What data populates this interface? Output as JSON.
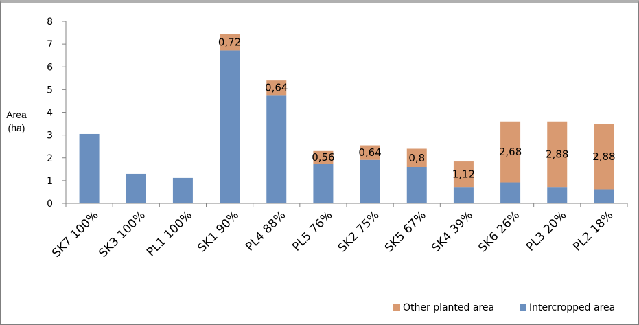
{
  "chart_data": {
    "type": "bar",
    "stacked": true,
    "categories": [
      "SK7 100%",
      "SK3 100%",
      "PL1 100%",
      "SK1 90%",
      "PL4 88%",
      "PL5 76%",
      "SK2 75%",
      "SK5 67%",
      "SK4 39%",
      "SK6 26%",
      "PL3 20%",
      "PL2 18%"
    ],
    "series": [
      {
        "name": "Intercropped area",
        "color": "#6a8fbf",
        "values": [
          3.05,
          1.3,
          1.12,
          6.72,
          4.76,
          1.74,
          1.91,
          1.6,
          0.72,
          0.92,
          0.72,
          0.62
        ]
      },
      {
        "name": "Other planted area",
        "color": "#d99a71",
        "values": [
          0,
          0,
          0,
          0.72,
          0.64,
          0.56,
          0.64,
          0.8,
          1.12,
          2.68,
          2.88,
          2.88
        ]
      }
    ],
    "data_labels": [
      "",
      "",
      "",
      "0,72",
      "0,64",
      "0,56",
      "0,64",
      "0,8",
      "1,12",
      "2,68",
      "2,88",
      "2,88"
    ],
    "ylabel_lines": [
      "Area",
      "(ha)"
    ],
    "ylim": [
      0,
      8
    ],
    "yticks": [
      "0",
      "1",
      "2",
      "3",
      "4",
      "5",
      "6",
      "7",
      "8"
    ],
    "grid": false,
    "legend_position": "bottom-right",
    "legend_order": [
      "Other planted area",
      "Intercropped area"
    ]
  }
}
